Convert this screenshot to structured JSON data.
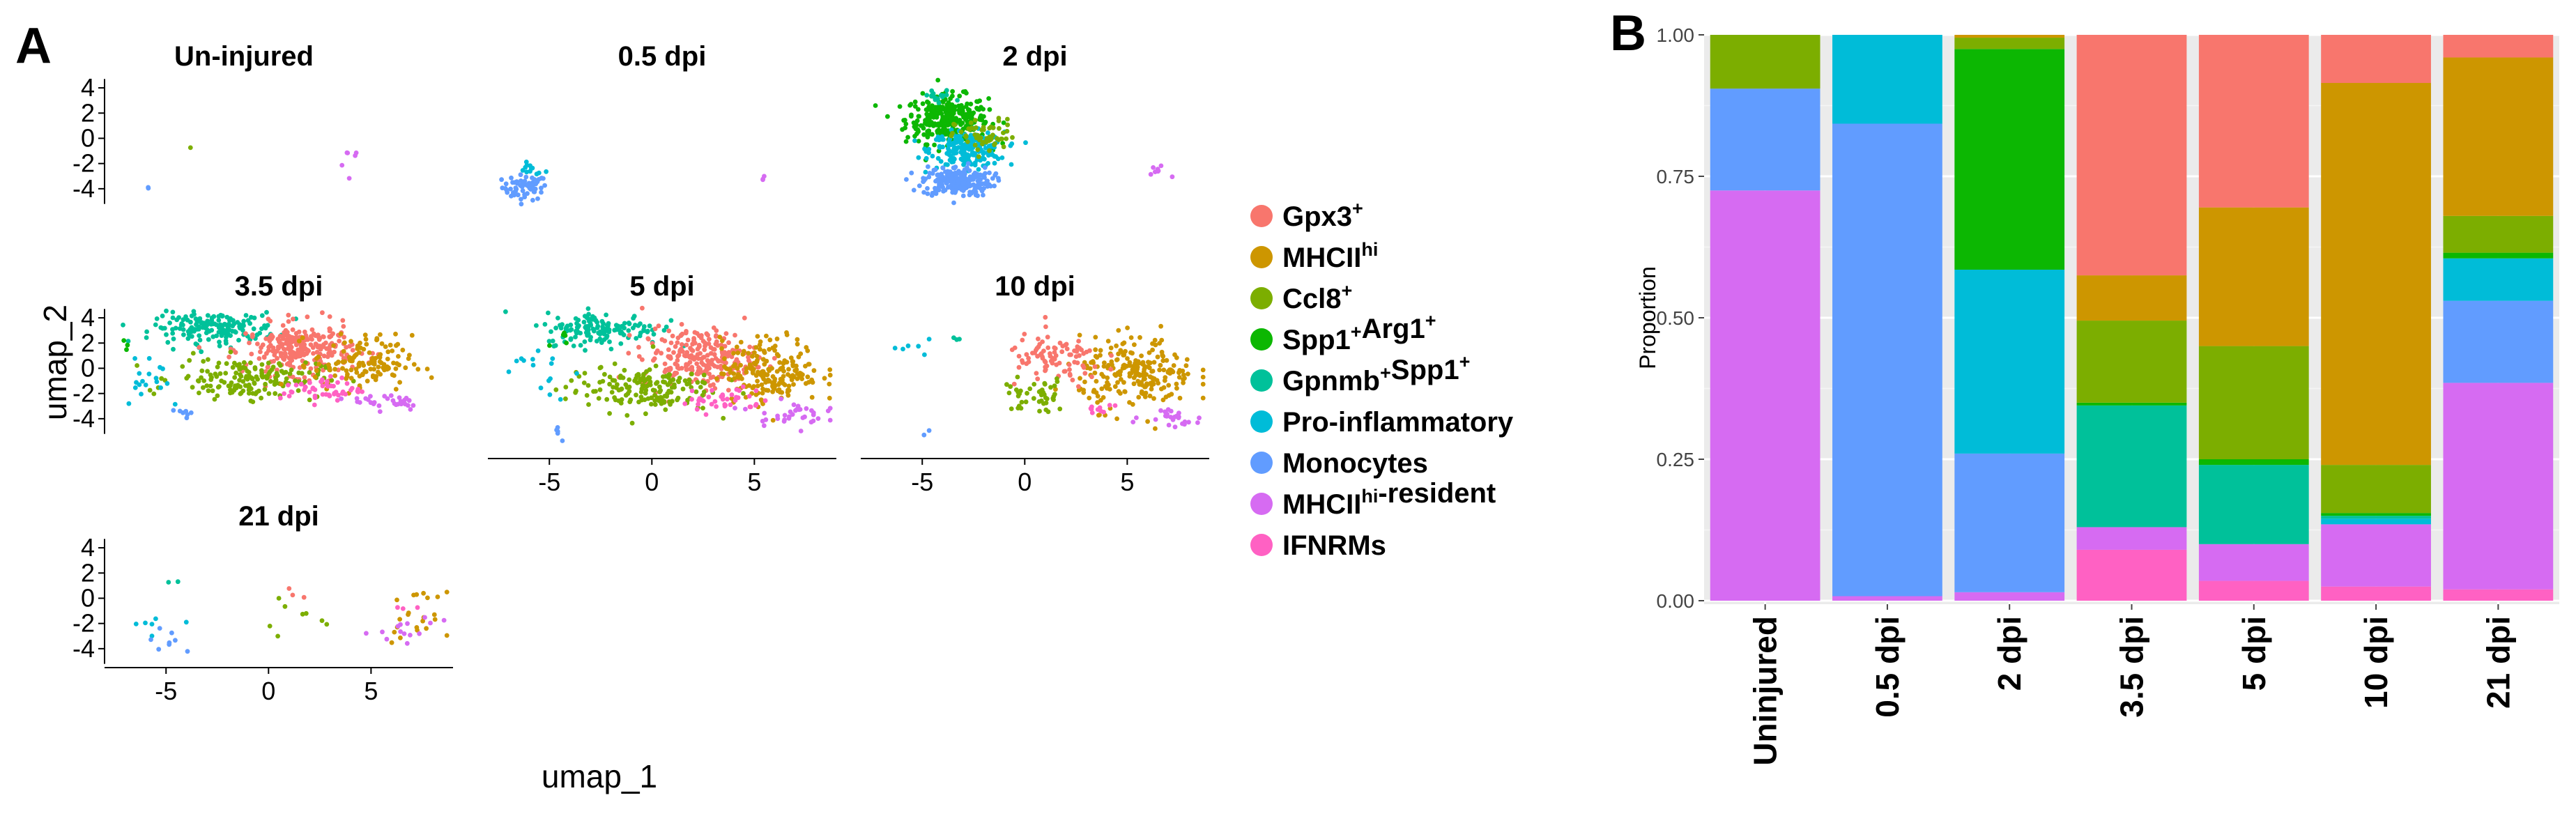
{
  "panel_a": {
    "letter": "A",
    "x_title": "umap_1",
    "y_title": "umap_2"
  },
  "panel_b": {
    "letter": "B"
  },
  "colors": {
    "Gpx3": "#F8766D",
    "MHCIIhi": "#CD9600",
    "Ccl8": "#7CAE00",
    "Spp1Arg1": "#0CB702",
    "Gpnmb": "#00C19A",
    "ProInfl": "#00BCD8",
    "Mono": "#619CFF",
    "Resident": "#D66BF2",
    "IFNRM": "#FF61C3"
  },
  "legend": [
    {
      "key": "Gpx3",
      "base": "Gpx3",
      "sup": "+",
      "base2": "",
      "sup2": "",
      "tail": ""
    },
    {
      "key": "MHCIIhi",
      "base": "MHCII",
      "sup": "hi",
      "base2": "",
      "sup2": "",
      "tail": ""
    },
    {
      "key": "Ccl8",
      "base": "Ccl8",
      "sup": "+",
      "base2": "",
      "sup2": "",
      "tail": ""
    },
    {
      "key": "Spp1Arg1",
      "base": "Spp1",
      "sup": "+",
      "base2": "Arg1",
      "sup2": "+",
      "tail": ""
    },
    {
      "key": "Gpnmb",
      "base": "Gpnmb",
      "sup": "+",
      "base2": "Spp1",
      "sup2": "+",
      "tail": ""
    },
    {
      "key": "ProInfl",
      "base": "Pro-inflammatory",
      "sup": "",
      "base2": "",
      "sup2": "",
      "tail": ""
    },
    {
      "key": "Mono",
      "base": "Monocytes",
      "sup": "",
      "base2": "",
      "sup2": "",
      "tail": ""
    },
    {
      "key": "Resident",
      "base": "MHCII",
      "sup": "hi",
      "base2": "",
      "sup2": "",
      "tail": "-resident"
    },
    {
      "key": "IFNRM",
      "base": "IFNRMs",
      "sup": "",
      "base2": "",
      "sup2": "",
      "tail": ""
    }
  ],
  "chart_data": [
    {
      "type": "scatter",
      "panel": "A",
      "title": "",
      "xlabel": "umap_1",
      "ylabel": "umap_2",
      "xlim": [
        -8,
        9
      ],
      "ylim": [
        -5.5,
        5
      ],
      "x_ticks": [
        -5,
        0,
        5
      ],
      "y_ticks": [
        -4,
        -2,
        0,
        2,
        4
      ],
      "facets": [
        {
          "title": "Un-injured",
          "clusters": [
            {
              "key": "Mono",
              "cx": -5.3,
              "cy": -4.1,
              "sx": 0.1,
              "sy": 0.15,
              "n": 2
            },
            {
              "key": "Ccl8",
              "cx": -2.8,
              "cy": -0.7,
              "sx": 0.1,
              "sy": 0.1,
              "n": 1
            },
            {
              "key": "Resident",
              "cx": 7.2,
              "cy": -1.5,
              "sx": 0.35,
              "sy": 1.2,
              "n": 6
            }
          ]
        },
        {
          "title": "0.5 dpi",
          "clusters": [
            {
              "key": "Mono",
              "cx": -6.2,
              "cy": -3.9,
              "sx": 0.55,
              "sy": 0.5,
              "n": 60
            },
            {
              "key": "ProInfl",
              "cx": -5.9,
              "cy": -2.5,
              "sx": 0.35,
              "sy": 0.25,
              "n": 12
            },
            {
              "key": "Resident",
              "cx": 5.5,
              "cy": -3.1,
              "sx": 0.2,
              "sy": 0.15,
              "n": 3
            }
          ]
        },
        {
          "title": "2 dpi",
          "clusters": [
            {
              "key": "Spp1Arg1",
              "cx": -3.8,
              "cy": 1.5,
              "sx": 1.0,
              "sy": 0.95,
              "n": 320
            },
            {
              "key": "ProInfl",
              "cx": -2.8,
              "cy": -0.9,
              "sx": 0.9,
              "sy": 0.7,
              "n": 200
            },
            {
              "key": "Mono",
              "cx": -3.3,
              "cy": -3.4,
              "sx": 0.85,
              "sy": 0.6,
              "n": 220
            },
            {
              "key": "Ccl8",
              "cx": -1.9,
              "cy": 0.1,
              "sx": 0.75,
              "sy": 0.7,
              "n": 60
            },
            {
              "key": "Gpnmb",
              "cx": -4.2,
              "cy": 3.3,
              "sx": 0.4,
              "sy": 0.3,
              "n": 15
            },
            {
              "key": "Resident",
              "cx": 6.6,
              "cy": -2.6,
              "sx": 0.55,
              "sy": 0.4,
              "n": 8
            }
          ]
        },
        {
          "title": "3.5 dpi",
          "clusters": [
            {
              "key": "Gnpmb",
              "cx": -2.8,
              "cy": 3.3,
              "sx": 1.4,
              "sy": 0.6,
              "n": 0
            },
            {
              "key": "Gpnmb",
              "cx": -2.6,
              "cy": 3.2,
              "sx": 1.5,
              "sy": 0.6,
              "n": 170
            },
            {
              "key": "Gpx3",
              "cx": 1.5,
              "cy": 1.5,
              "sx": 1.3,
              "sy": 1.0,
              "n": 260
            },
            {
              "key": "Ccl8",
              "cx": -1.0,
              "cy": -0.8,
              "sx": 1.8,
              "sy": 0.8,
              "n": 170
            },
            {
              "key": "MHCIIhi",
              "cx": 4.6,
              "cy": 0.4,
              "sx": 1.2,
              "sy": 1.1,
              "n": 130
            },
            {
              "key": "IFNRM",
              "cx": 2.6,
              "cy": -1.7,
              "sx": 1.0,
              "sy": 0.5,
              "n": 50
            },
            {
              "key": "Resident",
              "cx": 5.9,
              "cy": -2.6,
              "sx": 0.9,
              "sy": 0.35,
              "n": 30
            },
            {
              "key": "ProInfl",
              "cx": -5.8,
              "cy": -0.6,
              "sx": 0.9,
              "sy": 1.3,
              "n": 18
            },
            {
              "key": "Mono",
              "cx": -4.2,
              "cy": -3.6,
              "sx": 0.25,
              "sy": 0.3,
              "n": 7
            },
            {
              "key": "Spp1Arg1",
              "cx": -6.9,
              "cy": 1.7,
              "sx": 0.3,
              "sy": 0.3,
              "n": 3
            }
          ]
        },
        {
          "title": "5 dpi",
          "clusters": [
            {
              "key": "Gpnmb",
              "cx": -2.4,
              "cy": 3.4,
              "sx": 1.4,
              "sy": 0.55,
              "n": 150
            },
            {
              "key": "Gpx3",
              "cx": 2.3,
              "cy": 1.4,
              "sx": 1.4,
              "sy": 1.0,
              "n": 240
            },
            {
              "key": "Ccl8",
              "cx": -0.6,
              "cy": -0.7,
              "sx": 1.8,
              "sy": 0.8,
              "n": 170
            },
            {
              "key": "MHCIIhi",
              "cx": 5.8,
              "cy": 0.5,
              "sx": 1.2,
              "sy": 1.1,
              "n": 200
            },
            {
              "key": "IFNRM",
              "cx": 3.4,
              "cy": -1.5,
              "sx": 1.0,
              "sy": 0.5,
              "n": 40
            },
            {
              "key": "Resident",
              "cx": 6.7,
              "cy": -2.4,
              "sx": 0.9,
              "sy": 0.4,
              "n": 35
            },
            {
              "key": "ProInfl",
              "cx": -5.9,
              "cy": 0.4,
              "sx": 0.9,
              "sy": 1.0,
              "n": 15
            },
            {
              "key": "Mono",
              "cx": -4.3,
              "cy": -3.6,
              "sx": 0.3,
              "sy": 0.35,
              "n": 5
            },
            {
              "key": "Spp1Arg1",
              "cx": -5.0,
              "cy": 2.8,
              "sx": 0.5,
              "sy": 0.3,
              "n": 6
            }
          ]
        },
        {
          "title": "10 dpi",
          "clusters": [
            {
              "key": "MHCIIhi",
              "cx": 5.5,
              "cy": 0.3,
              "sx": 1.4,
              "sy": 1.2,
              "n": 230
            },
            {
              "key": "Gpx3",
              "cx": 1.5,
              "cy": 1.2,
              "sx": 1.2,
              "sy": 0.9,
              "n": 90
            },
            {
              "key": "Ccl8",
              "cx": 0.5,
              "cy": -1.2,
              "sx": 0.8,
              "sy": 0.6,
              "n": 45
            },
            {
              "key": "Resident",
              "cx": 7.2,
              "cy": -2.6,
              "sx": 0.7,
              "sy": 0.35,
              "n": 25
            },
            {
              "key": "IFNRM",
              "cx": 3.5,
              "cy": -1.8,
              "sx": 0.8,
              "sy": 0.4,
              "n": 10
            },
            {
              "key": "ProInfl",
              "cx": -5.4,
              "cy": 2.3,
              "sx": 0.7,
              "sy": 0.3,
              "n": 6
            },
            {
              "key": "Mono",
              "cx": -4.7,
              "cy": -3.5,
              "sx": 0.15,
              "sy": 0.25,
              "n": 2
            },
            {
              "key": "Gpnmb",
              "cx": -3.3,
              "cy": 2.6,
              "sx": 0.3,
              "sy": 0.3,
              "n": 3
            }
          ]
        },
        {
          "title": "21 dpi",
          "clusters": [
            {
              "key": "ProInfl",
              "cx": -5.5,
              "cy": -2.2,
              "sx": 0.5,
              "sy": 0.5,
              "n": 6
            },
            {
              "key": "Mono",
              "cx": -5.0,
              "cy": -3.4,
              "sx": 0.6,
              "sy": 0.4,
              "n": 8
            },
            {
              "key": "Gpnmb",
              "cx": -5.2,
              "cy": 1.4,
              "sx": 0.3,
              "sy": 0.2,
              "n": 2
            },
            {
              "key": "Ccl8",
              "cx": 0.8,
              "cy": -1.3,
              "sx": 0.9,
              "sy": 0.8,
              "n": 8
            },
            {
              "key": "Gpx3",
              "cx": 1.0,
              "cy": 0.2,
              "sx": 0.7,
              "sy": 0.3,
              "n": 3
            },
            {
              "key": "MHCIIhi",
              "cx": 7.2,
              "cy": -1.4,
              "sx": 0.8,
              "sy": 0.9,
              "n": 22
            },
            {
              "key": "Resident",
              "cx": 7.0,
              "cy": -2.7,
              "sx": 0.8,
              "sy": 0.5,
              "n": 14
            },
            {
              "key": "IFNRM",
              "cx": 6.6,
              "cy": -0.6,
              "sx": 0.4,
              "sy": 0.3,
              "n": 3
            }
          ]
        }
      ]
    },
    {
      "type": "bar",
      "panel": "B",
      "stacked": true,
      "ylabel": "Proportion",
      "ylim": [
        0,
        1
      ],
      "y_ticks": [
        0,
        0.25,
        0.5,
        0.75,
        1.0
      ],
      "y_tick_labels": [
        "0.00",
        "0.25",
        "0.50",
        "0.75",
        "1.00"
      ],
      "categories": [
        "Uninjured",
        "0.5 dpi",
        "2 dpi",
        "3.5 dpi",
        "5 dpi",
        "10 dpi",
        "21 dpi"
      ],
      "series": [
        {
          "key": "IFNRM",
          "values": [
            0.0,
            0.0,
            0.0,
            0.09,
            0.035,
            0.025,
            0.02
          ]
        },
        {
          "key": "Resident",
          "values": [
            0.725,
            0.008,
            0.015,
            0.04,
            0.065,
            0.11,
            0.365
          ]
        },
        {
          "key": "Mono",
          "values": [
            0.18,
            0.835,
            0.245,
            0.0,
            0.0,
            0.0,
            0.145
          ]
        },
        {
          "key": "ProInfl",
          "values": [
            0.0,
            0.157,
            0.325,
            0.0,
            0.0,
            0.01,
            0.075
          ]
        },
        {
          "key": "Gpnmb",
          "values": [
            0.0,
            0.0,
            0.0,
            0.215,
            0.14,
            0.005,
            0.0
          ]
        },
        {
          "key": "Spp1Arg1",
          "values": [
            0.0,
            0.0,
            0.39,
            0.005,
            0.01,
            0.005,
            0.01
          ]
        },
        {
          "key": "Ccl8",
          "values": [
            0.095,
            0.0,
            0.02,
            0.145,
            0.2,
            0.085,
            0.065
          ]
        },
        {
          "key": "MHCIIhi",
          "values": [
            0.0,
            0.0,
            0.005,
            0.08,
            0.245,
            0.675,
            0.28
          ]
        },
        {
          "key": "Gpx3",
          "values": [
            0.0,
            0.0,
            0.0,
            0.425,
            0.305,
            0.085,
            0.04
          ]
        }
      ]
    }
  ]
}
